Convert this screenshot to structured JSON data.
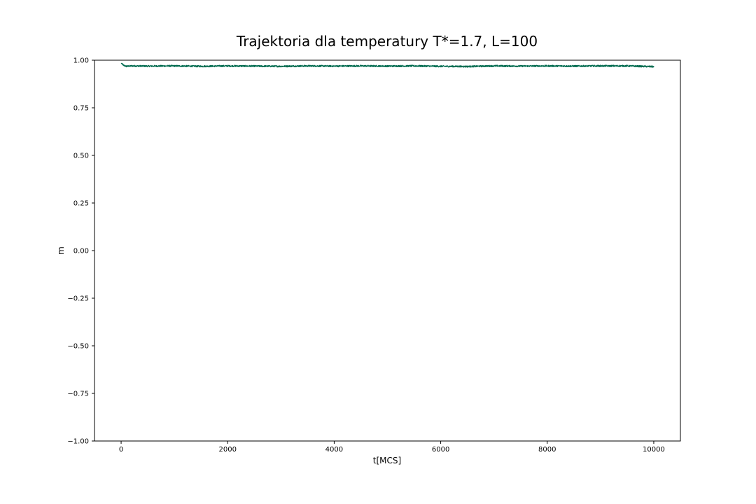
{
  "chart_data": {
    "type": "line",
    "title": "Trajektoria dla temperatury T*=1.7, L=100",
    "xlabel": "t[MCS]",
    "ylabel": "m",
    "xlim": [
      -500,
      10500
    ],
    "ylim": [
      -1.0,
      1.0
    ],
    "xticks": [
      0,
      2000,
      4000,
      6000,
      8000,
      10000
    ],
    "xtick_labels": [
      "0",
      "2000",
      "4000",
      "6000",
      "8000",
      "10000"
    ],
    "yticks": [
      -1.0,
      -0.75,
      -0.5,
      -0.25,
      0.0,
      0.25,
      0.5,
      0.75,
      1.0
    ],
    "ytick_labels": [
      "−1.00",
      "−0.75",
      "−0.50",
      "−0.25",
      "0.00",
      "0.25",
      "0.50",
      "0.75",
      "1.00"
    ],
    "grid": false,
    "series": [
      {
        "color": "#006b4f",
        "x": [
          0,
          50,
          100,
          200,
          500,
          1000,
          1500,
          2000,
          2500,
          3000,
          3500,
          4000,
          4500,
          5000,
          5500,
          6000,
          6500,
          7000,
          7500,
          8000,
          8500,
          9000,
          9500,
          10000
        ],
        "y": [
          0.985,
          0.972,
          0.968,
          0.97,
          0.969,
          0.97,
          0.968,
          0.97,
          0.969,
          0.968,
          0.97,
          0.969,
          0.97,
          0.969,
          0.97,
          0.968,
          0.967,
          0.97,
          0.969,
          0.97,
          0.969,
          0.97,
          0.97,
          0.966
        ],
        "noise_amplitude": 0.004
      }
    ]
  }
}
